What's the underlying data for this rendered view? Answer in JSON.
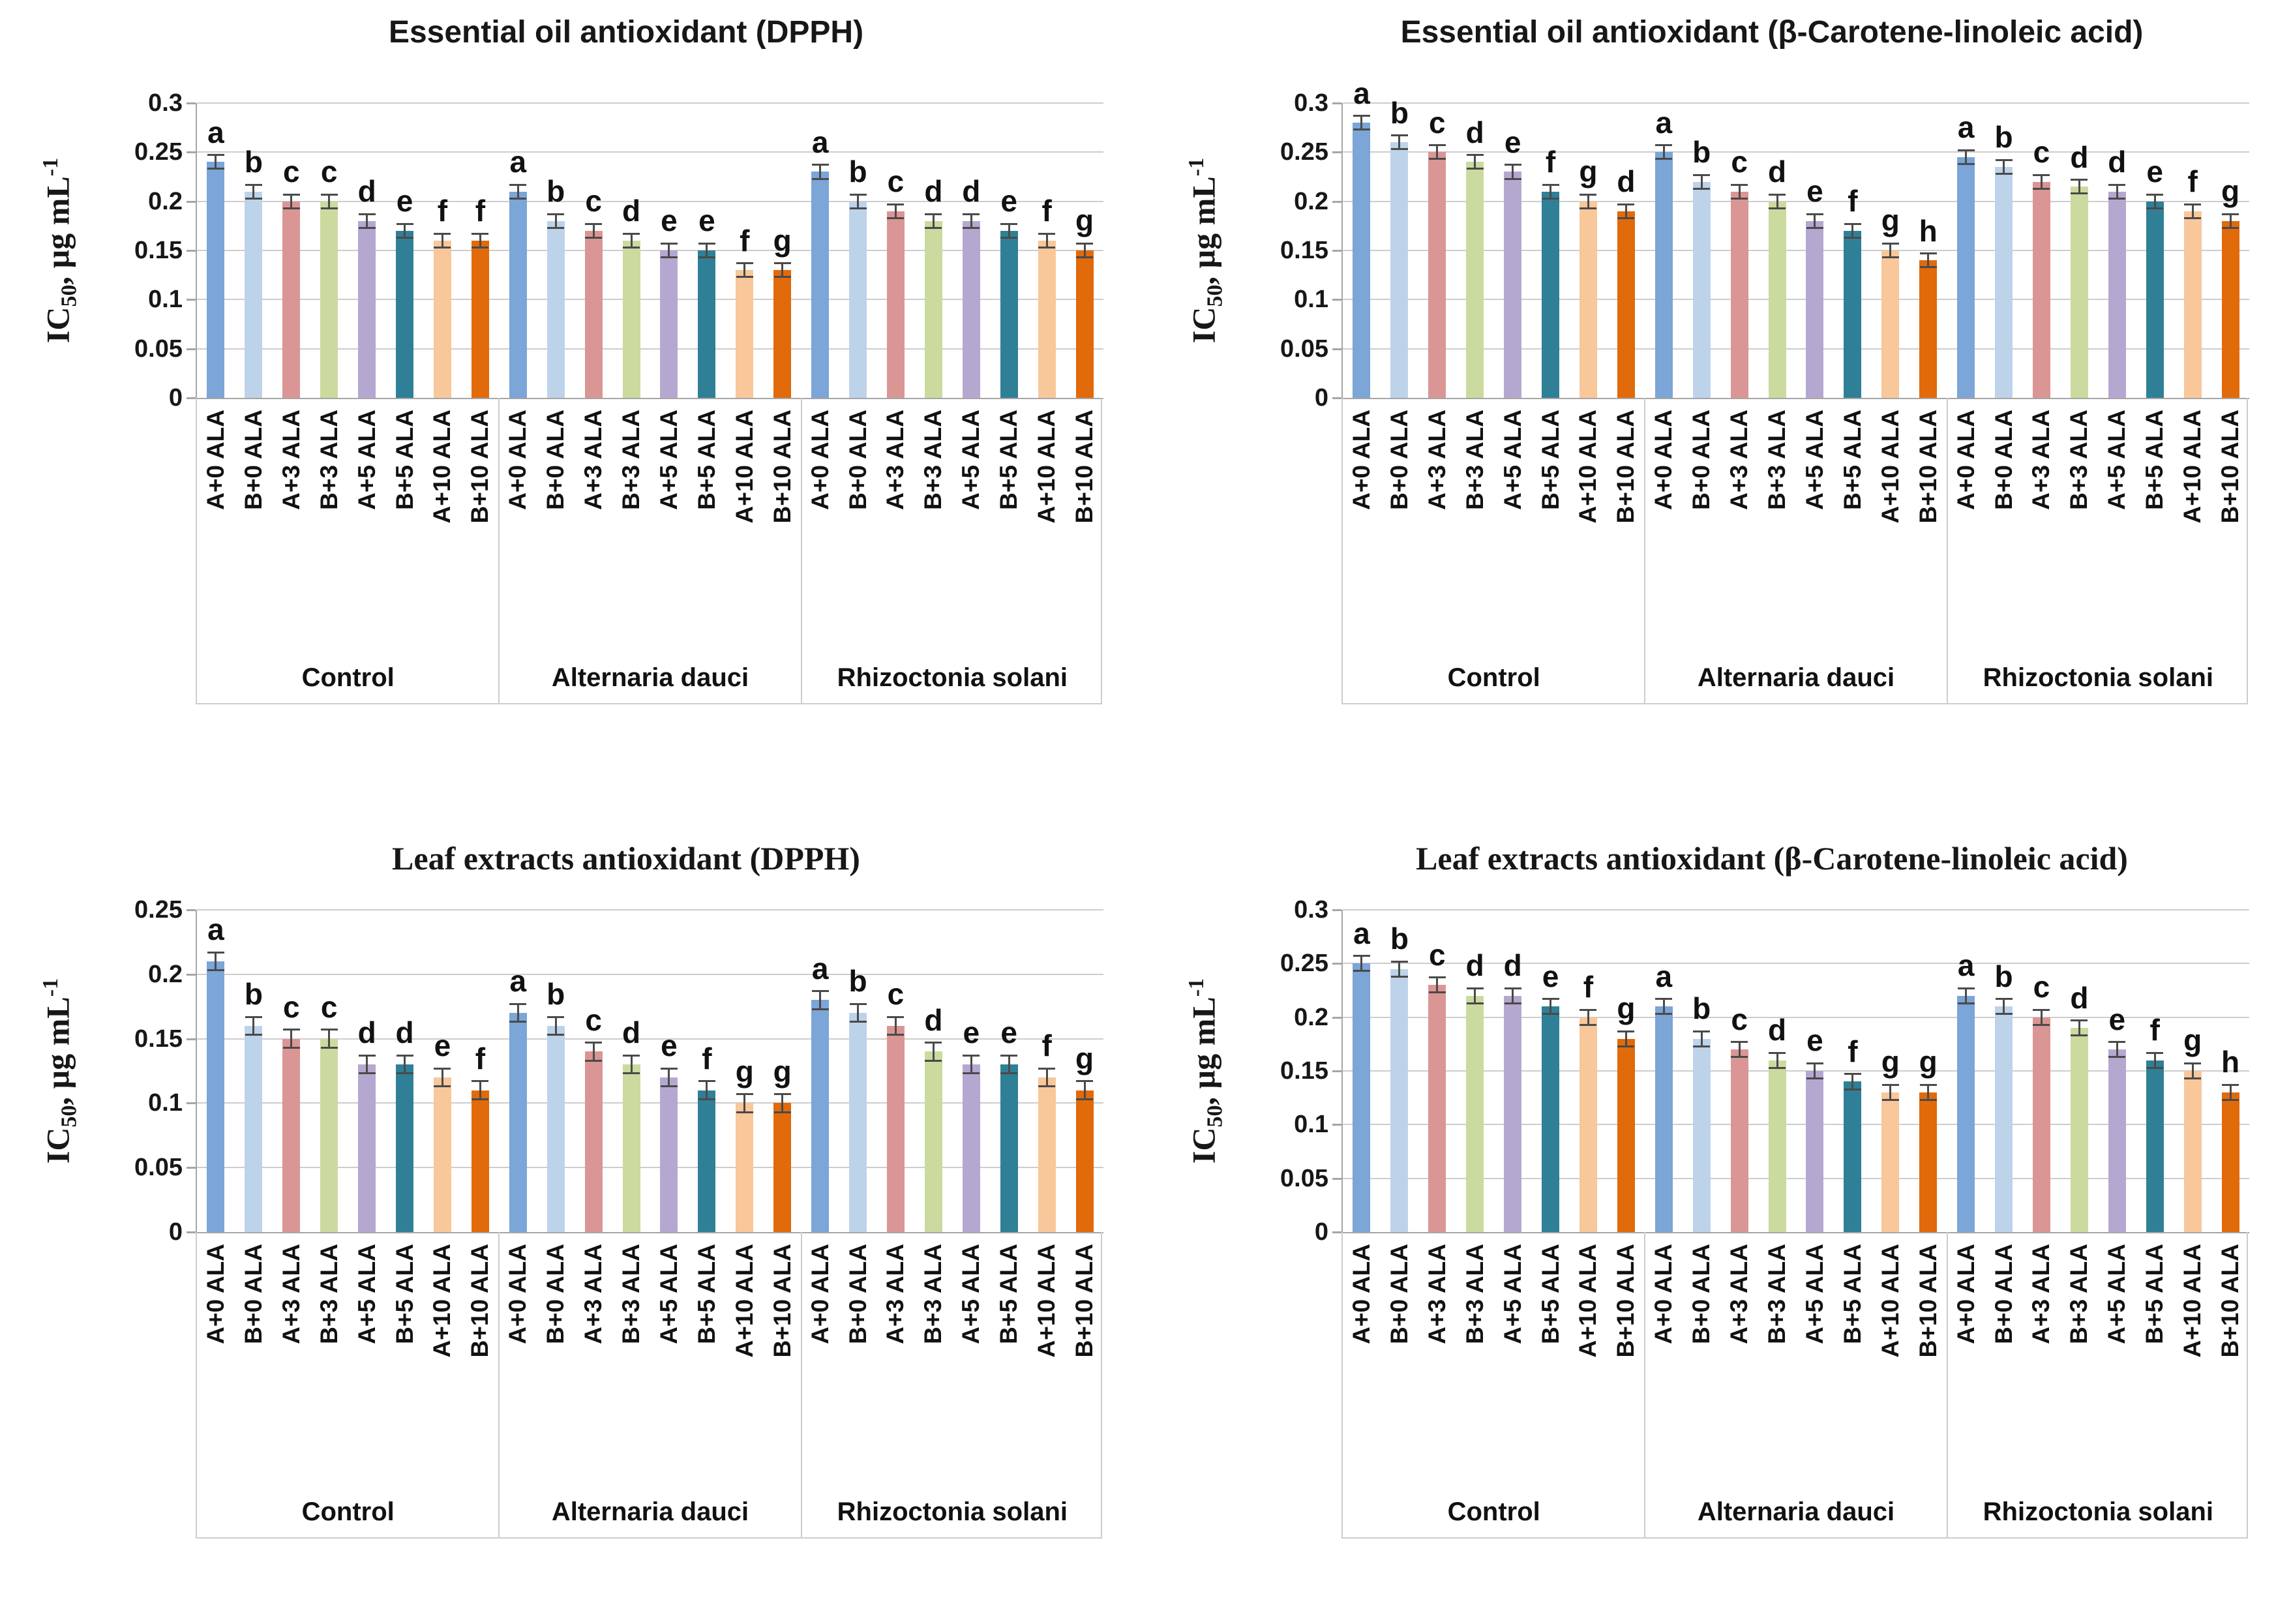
{
  "page": {
    "background": "#FFFFFF"
  },
  "shared": {
    "y_axis_label": {
      "prefix": "IC",
      "subscript": "50",
      "middle": ", µg mL",
      "superscript": "-1"
    },
    "x_series_labels": [
      "A+0 ALA",
      "B+0 ALA",
      "A+3 ALA",
      "B+3 ALA",
      "A+5 ALA",
      "B+5 ALA",
      "A+10 ALA",
      "B+10 ALA"
    ],
    "group_labels": [
      "Control",
      "Alternaria dauci",
      "Rhizoctonia solani"
    ],
    "bar_colors": [
      "#7CA5D8",
      "#BDD3EA",
      "#DA9694",
      "#CBDA9F",
      "#B5A8D0",
      "#2F8096",
      "#F8C79A",
      "#E16A0B"
    ],
    "error_bar_value": 0.007,
    "error_bar_color": "#4A4A4A",
    "gridline_color": "#CDCDCD",
    "axis_color": "#A6A6A6",
    "text_color": "#171717"
  },
  "chart_data": [
    {
      "type": "bar",
      "title": "Essential oil antioxidant (DPPH)",
      "title_font": "sans",
      "xlabel": "",
      "ylabel": "IC50, µg mL-1",
      "ylim": [
        0,
        0.3
      ],
      "ytick_step": 0.05,
      "ytick_labels": [
        "0.3",
        "0.25",
        "0.2",
        "0.15",
        "0.1",
        "0.05",
        "0"
      ],
      "grid": true,
      "legend": false,
      "categories": [
        "A+0 ALA",
        "B+0 ALA",
        "A+3 ALA",
        "B+3 ALA",
        "A+5 ALA",
        "B+5 ALA",
        "A+10 ALA",
        "B+10 ALA"
      ],
      "groups": [
        {
          "label": "Control",
          "letters": [
            "a",
            "b",
            "c",
            "c",
            "d",
            "e",
            "f",
            "f"
          ],
          "values": [
            0.24,
            0.21,
            0.2,
            0.2,
            0.18,
            0.17,
            0.16,
            0.16
          ]
        },
        {
          "label": "Alternaria dauci",
          "letters": [
            "a",
            "b",
            "c",
            "d",
            "e",
            "e",
            "f",
            "g"
          ],
          "values": [
            0.21,
            0.18,
            0.17,
            0.16,
            0.15,
            0.15,
            0.13,
            0.13
          ]
        },
        {
          "label": "Rhizoctonia solani",
          "letters": [
            "a",
            "b",
            "c",
            "d",
            "d",
            "e",
            "f",
            "g"
          ],
          "values": [
            0.23,
            0.2,
            0.19,
            0.18,
            0.18,
            0.17,
            0.16,
            0.15
          ]
        }
      ]
    },
    {
      "type": "bar",
      "title": "Essential oil antioxidant (β-Carotene-linoleic acid)",
      "title_font": "sans",
      "xlabel": "",
      "ylabel": "IC50, µg mL-1",
      "ylim": [
        0,
        0.3
      ],
      "ytick_step": 0.05,
      "ytick_labels": [
        "0.3",
        "0.25",
        "0.2",
        "0.15",
        "0.1",
        "0.05",
        "0"
      ],
      "grid": true,
      "legend": false,
      "categories": [
        "A+0 ALA",
        "B+0 ALA",
        "A+3 ALA",
        "B+3 ALA",
        "A+5 ALA",
        "B+5 ALA",
        "A+10 ALA",
        "B+10 ALA"
      ],
      "groups": [
        {
          "label": "Control",
          "letters": [
            "a",
            "b",
            "c",
            "d",
            "e",
            "f",
            "g",
            "d"
          ],
          "values": [
            0.28,
            0.26,
            0.25,
            0.24,
            0.23,
            0.21,
            0.2,
            0.19
          ]
        },
        {
          "label": "Alternaria dauci",
          "letters": [
            "a",
            "b",
            "c",
            "d",
            "e",
            "f",
            "g",
            "h"
          ],
          "values": [
            0.25,
            0.22,
            0.21,
            0.2,
            0.18,
            0.17,
            0.15,
            0.14
          ]
        },
        {
          "label": "Rhizoctonia solani",
          "letters": [
            "a",
            "b",
            "c",
            "d",
            "d",
            "e",
            "f",
            "g"
          ],
          "values": [
            0.245,
            0.235,
            0.22,
            0.215,
            0.21,
            0.2,
            0.19,
            0.18
          ]
        }
      ]
    },
    {
      "type": "bar",
      "title": "Leaf extracts antioxidant (DPPH)",
      "title_font": "serif",
      "xlabel": "",
      "ylabel": "IC50, µg mL-1",
      "ylim": [
        0,
        0.25
      ],
      "ytick_step": 0.05,
      "ytick_labels": [
        "0.25",
        "0.2",
        "0.15",
        "0.1",
        "0.05",
        "0"
      ],
      "grid": true,
      "legend": false,
      "categories": [
        "A+0 ALA",
        "B+0 ALA",
        "A+3 ALA",
        "B+3 ALA",
        "A+5 ALA",
        "B+5 ALA",
        "A+10 ALA",
        "B+10 ALA"
      ],
      "groups": [
        {
          "label": "Control",
          "letters": [
            "a",
            "b",
            "c",
            "c",
            "d",
            "d",
            "e",
            "f"
          ],
          "values": [
            0.21,
            0.16,
            0.15,
            0.15,
            0.13,
            0.13,
            0.12,
            0.11
          ]
        },
        {
          "label": "Alternaria dauci",
          "letters": [
            "a",
            "b",
            "c",
            "d",
            "e",
            "f",
            "g",
            "g"
          ],
          "values": [
            0.17,
            0.16,
            0.14,
            0.13,
            0.12,
            0.11,
            0.1,
            0.1
          ]
        },
        {
          "label": "Rhizoctonia solani",
          "letters": [
            "a",
            "b",
            "c",
            "d",
            "e",
            "e",
            "f",
            "g"
          ],
          "values": [
            0.18,
            0.17,
            0.16,
            0.14,
            0.13,
            0.13,
            0.12,
            0.11
          ]
        }
      ]
    },
    {
      "type": "bar",
      "title": "Leaf extracts antioxidant (β-Carotene-linoleic acid)",
      "title_font": "serif",
      "xlabel": "",
      "ylabel": "IC50, µg mL-1",
      "ylim": [
        0,
        0.3
      ],
      "ytick_step": 0.05,
      "ytick_labels": [
        "0.3",
        "0.25",
        "0.2",
        "0.15",
        "0.1",
        "0.05",
        "0"
      ],
      "grid": true,
      "legend": false,
      "categories": [
        "A+0 ALA",
        "B+0 ALA",
        "A+3 ALA",
        "B+3 ALA",
        "A+5 ALA",
        "B+5 ALA",
        "A+10 ALA",
        "B+10 ALA"
      ],
      "groups": [
        {
          "label": "Control",
          "letters": [
            "a",
            "b",
            "c",
            "d",
            "d",
            "e",
            "f",
            "g"
          ],
          "values": [
            0.25,
            0.245,
            0.23,
            0.22,
            0.22,
            0.21,
            0.2,
            0.18
          ]
        },
        {
          "label": "Alternaria dauci",
          "letters": [
            "a",
            "b",
            "c",
            "d",
            "e",
            "f",
            "g",
            "g"
          ],
          "values": [
            0.21,
            0.18,
            0.17,
            0.16,
            0.15,
            0.14,
            0.13,
            0.13
          ]
        },
        {
          "label": "Rhizoctonia solani",
          "letters": [
            "a",
            "b",
            "c",
            "d",
            "e",
            "f",
            "g",
            "h"
          ],
          "values": [
            0.22,
            0.21,
            0.2,
            0.19,
            0.17,
            0.16,
            0.15,
            0.13
          ]
        }
      ]
    }
  ]
}
